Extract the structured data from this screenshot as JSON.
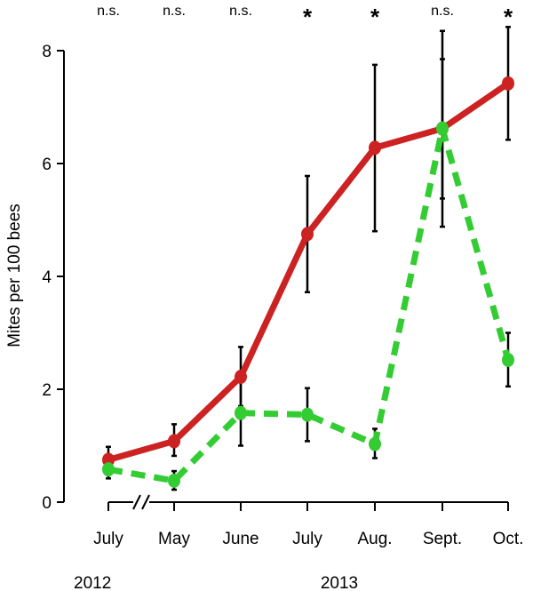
{
  "chart_data": {
    "type": "line",
    "title": "",
    "ylabel": "Mites per 100 bees",
    "xlabel": "",
    "ylim": [
      0,
      8
    ],
    "yticks": [
      0,
      2,
      4,
      6,
      8
    ],
    "categories": [
      "July",
      "May",
      "June",
      "July",
      "Aug.",
      "Sept.",
      "Oct."
    ],
    "year_labels": [
      {
        "text": "2012",
        "category_index": 0
      },
      {
        "text": "2013",
        "category_index": 3
      }
    ],
    "axis_break_between": [
      0,
      1
    ],
    "significance": [
      "n.s.",
      "n.s.",
      "n.s.",
      "*",
      "*",
      "n.s.",
      "*"
    ],
    "series": [
      {
        "color": "#cc2222",
        "style": "solid",
        "values": [
          0.75,
          1.08,
          2.22,
          4.75,
          6.28,
          6.62,
          7.42
        ],
        "err_low": [
          0.55,
          0.82,
          1.7,
          3.72,
          4.8,
          5.38,
          6.42
        ],
        "err_high": [
          0.98,
          1.38,
          2.75,
          5.78,
          7.75,
          7.85,
          8.42
        ]
      },
      {
        "color": "#33cc33",
        "style": "dashed",
        "values": [
          0.58,
          0.38,
          1.58,
          1.55,
          1.03,
          6.62,
          2.52
        ],
        "err_low": [
          0.42,
          0.22,
          1.0,
          1.08,
          0.78,
          4.88,
          2.05
        ],
        "err_high": [
          0.75,
          0.55,
          2.15,
          2.02,
          1.3,
          8.35,
          3.0
        ]
      }
    ]
  }
}
